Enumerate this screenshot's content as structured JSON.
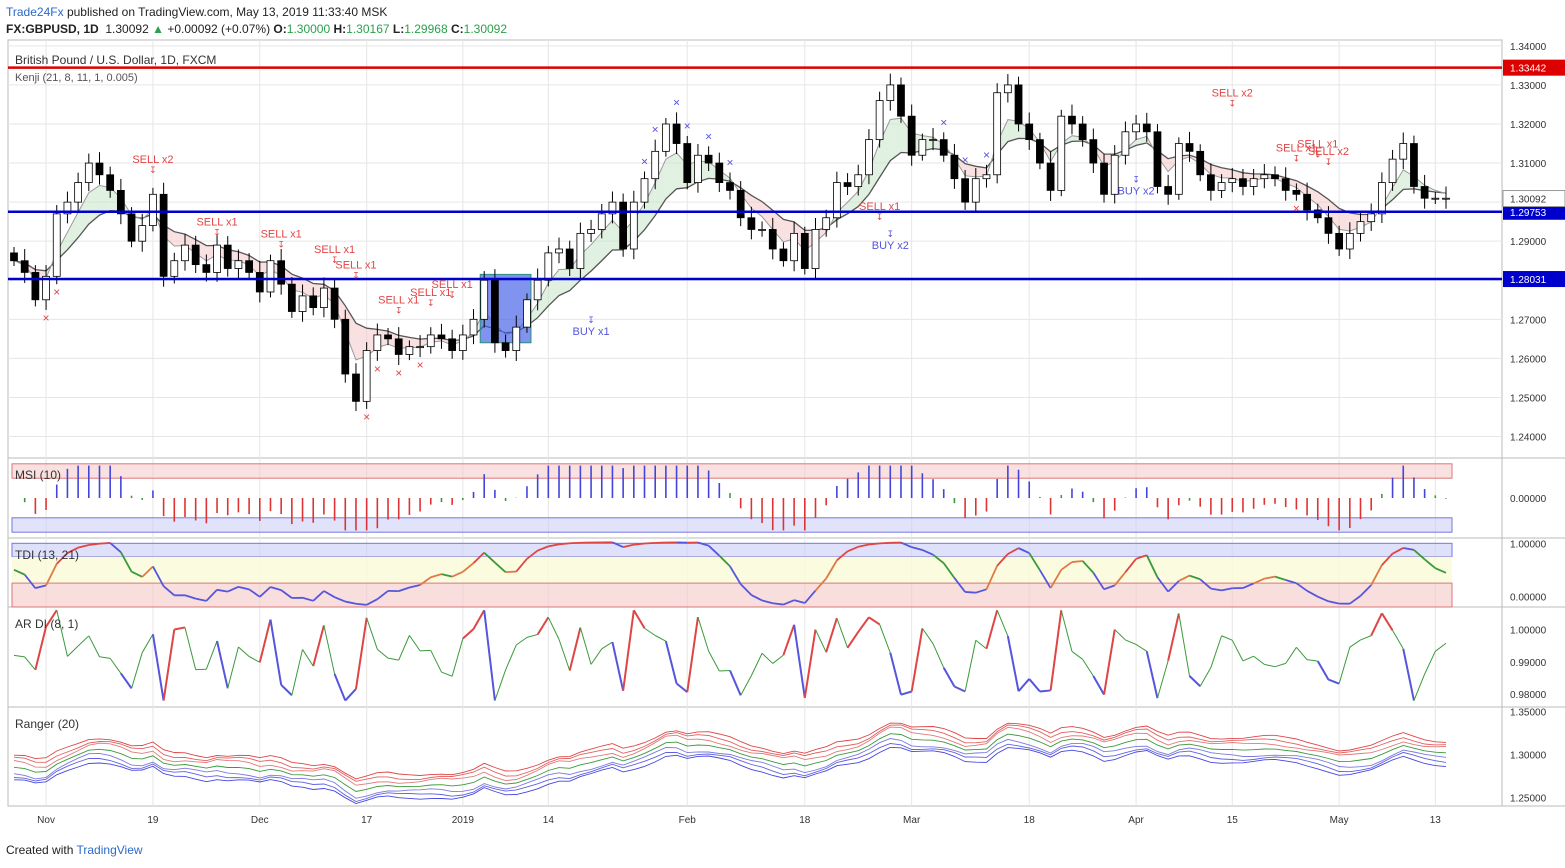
{
  "header": {
    "brand": "Trade24Fx",
    "published": "published on TradingView.com, May 13, 2019 11:33:40 MSK",
    "symbol": "FX:GBPUSD, 1D",
    "last": "1.30092",
    "change": "+0.00092 (+0.07%)",
    "o_label": "O:",
    "o": "1.30000",
    "h_label": "H:",
    "h": "1.30167",
    "l_label": "L:",
    "l": "1.29968",
    "c_label": "C:",
    "c": "1.30092"
  },
  "footer": {
    "created": "Created with",
    "tv": "TradingView"
  },
  "colors": {
    "bull": "#ffffff",
    "bear": "#000000",
    "level": "#0000cc",
    "resistance": "#dd0000",
    "sell": "#e04545",
    "buy": "#5555dd",
    "grid": "#e6e6e6",
    "kenji_line": "#555555"
  },
  "chart_data": [
    {
      "type": "candlestick",
      "title": "British Pound / U.S. Dollar, 1D, FXCM",
      "indicator": "Kenji (21, 8, 11, 1, 0.005)",
      "ylim": [
        1.234,
        1.344
      ],
      "y_ticks": [
        "1.34000",
        "1.33000",
        "1.32000",
        "1.31000",
        "1.30000",
        "1.29000",
        "1.28000",
        "1.27000",
        "1.26000",
        "1.25000",
        "1.24000"
      ],
      "x_ticks": [
        "Nov",
        "19",
        "Dec",
        "17",
        "2019",
        "14",
        "Feb",
        "18",
        "Mar",
        "18",
        "Apr",
        "15",
        "May",
        "13"
      ],
      "levels": [
        {
          "value": 1.33442,
          "label": "1.33442",
          "color": "#dd0000"
        },
        {
          "value": 1.29753,
          "label": "1.29753",
          "color": "#0000cc"
        },
        {
          "value": 1.28031,
          "label": "1.28031",
          "color": "#0000cc"
        }
      ],
      "last_price_label": "1.30092",
      "close_path": [
        1.285,
        1.282,
        1.275,
        1.281,
        1.297,
        1.3,
        1.305,
        1.31,
        1.307,
        1.303,
        1.297,
        1.29,
        1.294,
        1.302,
        1.281,
        1.285,
        1.289,
        1.284,
        1.282,
        1.289,
        1.283,
        1.285,
        1.282,
        1.277,
        1.285,
        1.279,
        1.272,
        1.276,
        1.273,
        1.278,
        1.27,
        1.256,
        1.249,
        1.262,
        1.266,
        1.265,
        1.261,
        1.263,
        1.263,
        1.266,
        1.265,
        1.262,
        1.266,
        1.27,
        1.28,
        1.264,
        1.262,
        1.268,
        1.275,
        1.28,
        1.287,
        1.288,
        1.283,
        1.292,
        1.293,
        1.297,
        1.3,
        1.288,
        1.3,
        1.306,
        1.313,
        1.32,
        1.315,
        1.305,
        1.312,
        1.31,
        1.305,
        1.303,
        1.296,
        1.293,
        1.293,
        1.288,
        1.285,
        1.292,
        1.283,
        1.293,
        1.296,
        1.305,
        1.304,
        1.307,
        1.316,
        1.326,
        1.33,
        1.322,
        1.312,
        1.316,
        1.316,
        1.312,
        1.306,
        1.3,
        1.306,
        1.307,
        1.328,
        1.33,
        1.32,
        1.316,
        1.31,
        1.303,
        1.322,
        1.32,
        1.316,
        1.31,
        1.302,
        1.312,
        1.318,
        1.32,
        1.318,
        1.304,
        1.302,
        1.315,
        1.313,
        1.307,
        1.303,
        1.305,
        1.306,
        1.304,
        1.306,
        1.307,
        1.306,
        1.303,
        1.302,
        1.298,
        1.296,
        1.292,
        1.288,
        1.292,
        1.295,
        1.297,
        1.305,
        1.311,
        1.315,
        1.304,
        1.301,
        1.301,
        1.301
      ],
      "signals": [
        {
          "text": "SELL x2",
          "x_index": 13,
          "price": 1.31,
          "color": "#e04545"
        },
        {
          "text": "SELL x1",
          "x_index": 19,
          "price": 1.294,
          "color": "#e04545"
        },
        {
          "text": "SELL x1",
          "x_index": 25,
          "price": 1.291,
          "color": "#e04545"
        },
        {
          "text": "SELL x1",
          "x_index": 30,
          "price": 1.287,
          "color": "#e04545"
        },
        {
          "text": "SELL x1",
          "x_index": 32,
          "price": 1.283,
          "color": "#e04545"
        },
        {
          "text": "SELL x1",
          "x_index": 36,
          "price": 1.274,
          "color": "#e04545"
        },
        {
          "text": "SELL x1",
          "x_index": 39,
          "price": 1.276,
          "color": "#e04545"
        },
        {
          "text": "SELL x1",
          "x_index": 41,
          "price": 1.278,
          "color": "#e04545"
        },
        {
          "text": "BUY x1",
          "x_index": 54,
          "price": 1.266,
          "color": "#5555dd"
        },
        {
          "text": "SELL x1",
          "x_index": 81,
          "price": 1.298,
          "color": "#e04545"
        },
        {
          "text": "BUY x2",
          "x_index": 82,
          "price": 1.288,
          "color": "#5555dd"
        },
        {
          "text": "BUY x2",
          "x_index": 105,
          "price": 1.302,
          "color": "#5555dd"
        },
        {
          "text": "SELL x2",
          "x_index": 114,
          "price": 1.327,
          "color": "#e04545"
        },
        {
          "text": "SELL x1",
          "x_index": 120,
          "price": 1.313,
          "color": "#e04545"
        },
        {
          "text": "SELL x1",
          "x_index": 122,
          "price": 1.314,
          "color": "#e04545"
        },
        {
          "text": "SELL x2",
          "x_index": 123,
          "price": 1.312,
          "color": "#e04545"
        }
      ]
    },
    {
      "type": "histogram",
      "title": "MSI (10)",
      "ylim": [
        -1,
        1
      ],
      "y_ticks": [
        "0.00000"
      ]
    },
    {
      "type": "line",
      "title": "TDI (13, 21)",
      "ylim": [
        -0.2,
        1.1
      ],
      "y_ticks": [
        "1.00000",
        "0.00000"
      ]
    },
    {
      "type": "line",
      "title": "AR DI (8, 1)",
      "ylim": [
        0.976,
        1.007
      ],
      "y_ticks": [
        "1.00000",
        "0.99000",
        "0.98000"
      ]
    },
    {
      "type": "line",
      "title": "Ranger (20)",
      "ylim": [
        1.24,
        1.355
      ],
      "y_ticks": [
        "1.35000",
        "1.30000",
        "1.25000"
      ]
    }
  ]
}
